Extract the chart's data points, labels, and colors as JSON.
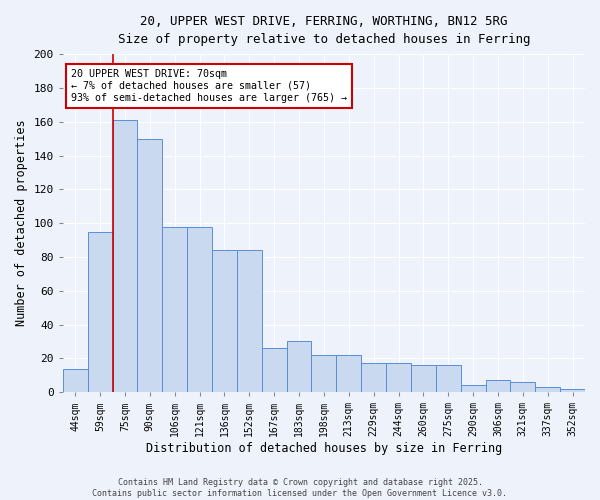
{
  "title_line1": "20, UPPER WEST DRIVE, FERRING, WORTHING, BN12 5RG",
  "title_line2": "Size of property relative to detached houses in Ferring",
  "xlabel": "Distribution of detached houses by size in Ferring",
  "ylabel": "Number of detached properties",
  "bar_color": "#c9d9f0",
  "bar_edge_color": "#5b8dd9",
  "categories": [
    "44sqm",
    "59sqm",
    "75sqm",
    "90sqm",
    "106sqm",
    "121sqm",
    "136sqm",
    "152sqm",
    "167sqm",
    "183sqm",
    "198sqm",
    "213sqm",
    "229sqm",
    "244sqm",
    "260sqm",
    "275sqm",
    "290sqm",
    "306sqm",
    "321sqm",
    "337sqm",
    "352sqm"
  ],
  "values": [
    14,
    95,
    161,
    150,
    98,
    98,
    84,
    84,
    26,
    30,
    22,
    22,
    17,
    17,
    16,
    16,
    4,
    7,
    6,
    3,
    2
  ],
  "annotation_text": "20 UPPER WEST DRIVE: 70sqm\n← 7% of detached houses are smaller (57)\n93% of semi-detached houses are larger (765) →",
  "annotation_box_color": "#ffffff",
  "annotation_box_edge_color": "#cc0000",
  "red_line_x": 1.5,
  "ylim": [
    0,
    200
  ],
  "yticks": [
    0,
    20,
    40,
    60,
    80,
    100,
    120,
    140,
    160,
    180,
    200
  ],
  "background_color": "#eef2fb",
  "grid_color": "#ffffff",
  "footer_line1": "Contains HM Land Registry data © Crown copyright and database right 2025.",
  "footer_line2": "Contains public sector information licensed under the Open Government Licence v3.0."
}
